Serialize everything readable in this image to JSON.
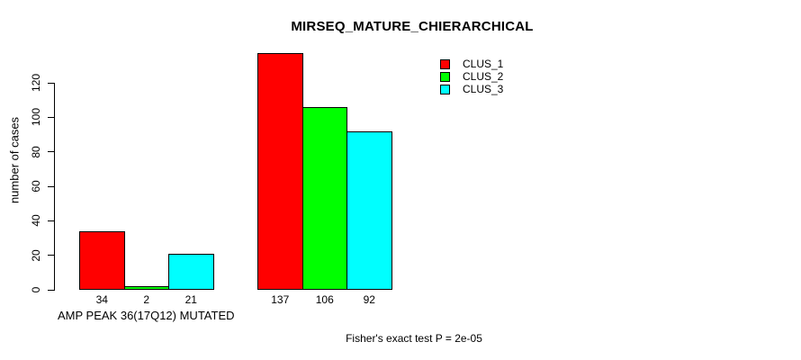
{
  "chart_data": {
    "type": "bar",
    "title": "MIRSEQ_MATURE_CHIERARCHICAL",
    "ylabel": "number of cases",
    "xlabel": "",
    "ylim": [
      0,
      137
    ],
    "yticks": [
      0,
      20,
      40,
      60,
      80,
      100,
      120
    ],
    "grid": false,
    "legend_position": "top-right",
    "categories": [
      "AMP PEAK 36(17Q12) MUTATED",
      ""
    ],
    "series": [
      {
        "name": "CLUS_1",
        "color": "#FF0000",
        "values": [
          34,
          137
        ]
      },
      {
        "name": "CLUS_2",
        "color": "#00FF00",
        "values": [
          2,
          106
        ]
      },
      {
        "name": "CLUS_3",
        "color": "#00FFFF",
        "values": [
          21,
          92
        ]
      }
    ],
    "bar_value_labels": [
      [
        34,
        137
      ],
      [
        2,
        106
      ],
      [
        21,
        92
      ]
    ],
    "annotation": "Fisher's exact test P = 2e-05"
  }
}
